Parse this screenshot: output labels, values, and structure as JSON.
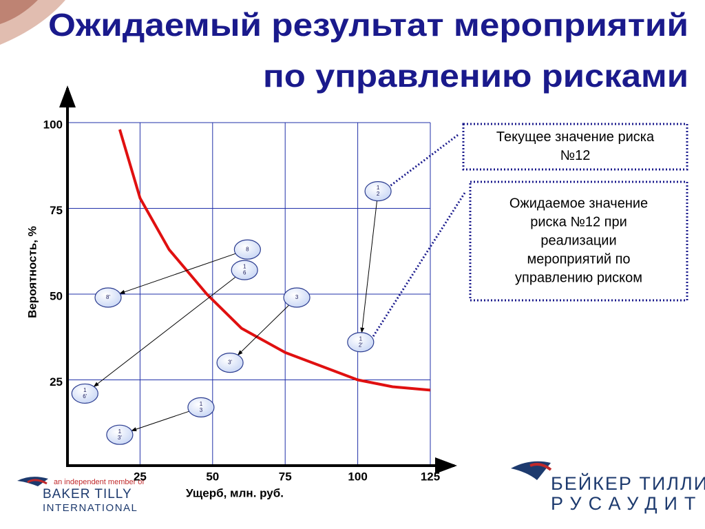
{
  "title": [
    "Ожидаемый результат мероприятий",
    "по управлению рисками"
  ],
  "logos": {
    "left": [
      "an independent member of",
      "BAKER TILLY",
      "INTERNATIONAL"
    ],
    "right": [
      "БЕЙКЕР ТИЛЛИ",
      "РУСАУДИТ"
    ]
  },
  "chart_data": {
    "type": "scatter",
    "x_label": "Ущерб, млн. руб.",
    "y_label": "Вероятность, %",
    "xlim": [
      0,
      125
    ],
    "ylim": [
      0,
      100
    ],
    "xticks": [
      25,
      50,
      75,
      100,
      125
    ],
    "yticks": [
      25,
      50,
      75,
      100
    ],
    "grid": true,
    "grid_color": "#1f2fa8",
    "point_color": "#dbe4fa",
    "point_edge": "#2a3b8f",
    "risks": [
      {
        "current": {
          "x": 107,
          "y": 80,
          "label": [
            "1",
            "2"
          ]
        },
        "expected": {
          "x": 101,
          "y": 36,
          "label": [
            "1",
            "2'"
          ]
        }
      },
      {
        "current": {
          "x": 62,
          "y": 63,
          "label": [
            "8"
          ]
        },
        "expected": {
          "x": 14,
          "y": 49,
          "label": [
            "8'"
          ]
        }
      },
      {
        "current": {
          "x": 61,
          "y": 57,
          "label": [
            "1",
            "6"
          ]
        },
        "expected": {
          "x": 6,
          "y": 21,
          "label": [
            "1",
            "6'"
          ]
        }
      },
      {
        "current": {
          "x": 79,
          "y": 49,
          "label": [
            "3"
          ]
        },
        "expected": {
          "x": 56,
          "y": 30,
          "label": [
            "3'"
          ]
        }
      },
      {
        "current": {
          "x": 46,
          "y": 17,
          "label": [
            "1",
            "3"
          ]
        },
        "expected": {
          "x": 18,
          "y": 9,
          "label": [
            "1",
            "3'"
          ]
        }
      }
    ],
    "curve": {
      "color": "#e01010",
      "x": [
        18,
        25,
        35,
        48,
        60,
        75,
        100,
        112,
        125
      ],
      "y": [
        98,
        78,
        63,
        50,
        40,
        33,
        25,
        23,
        22
      ]
    },
    "annotations": [
      {
        "text": [
          "Текущее значение риска",
          "№12"
        ]
      },
      {
        "text": [
          "Ожидаемое значение",
          "риска №12 при",
          "реализации",
          "мероприятий по",
          "управлению риском"
        ]
      }
    ]
  }
}
